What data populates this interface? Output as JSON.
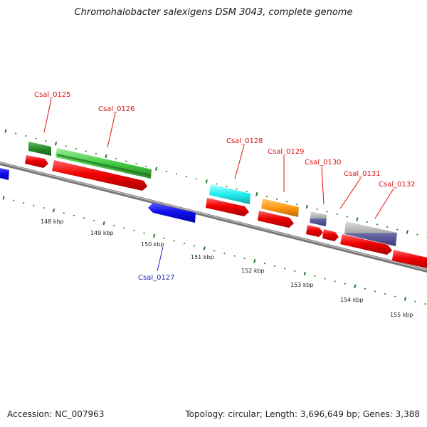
{
  "title": "Chromohalobacter salexigens DSM 3043, complete genome",
  "footer": {
    "accession": "Accession: NC_007963",
    "summary": "Topology: circular; Length: 3,696,649 bp; Genes: 3,388"
  },
  "scale_labels": [
    "148 kbp",
    "149 kbp",
    "150 kbp",
    "151 kbp",
    "152 kbp",
    "153 kbp",
    "154 kbp",
    "155 kbp"
  ],
  "genes": [
    {
      "label": "Csal_0125",
      "color": "#dd1111"
    },
    {
      "label": "Csal_0126",
      "color": "#dd1111"
    },
    {
      "label": "Csal_0127",
      "color": "#2222bb"
    },
    {
      "label": "Csal_0128",
      "color": "#dd1111"
    },
    {
      "label": "Csal_0129",
      "color": "#dd1111"
    },
    {
      "label": "Csal_0130",
      "color": "#dd1111"
    },
    {
      "label": "Csal_0131",
      "color": "#dd1111"
    },
    {
      "label": "Csal_0132",
      "color": "#dd1111"
    }
  ],
  "colors": {
    "backbone": "#888888",
    "cds": "#ee1111",
    "minus_strand": "#1111ee",
    "tick": "#227722",
    "feature_green_dark": "#2a8a2a",
    "feature_green_light": "#44cc44",
    "feature_cyan": "#22eeee",
    "feature_orange": "#ff9911",
    "feature_grey_blue": "#6a6aaa"
  }
}
